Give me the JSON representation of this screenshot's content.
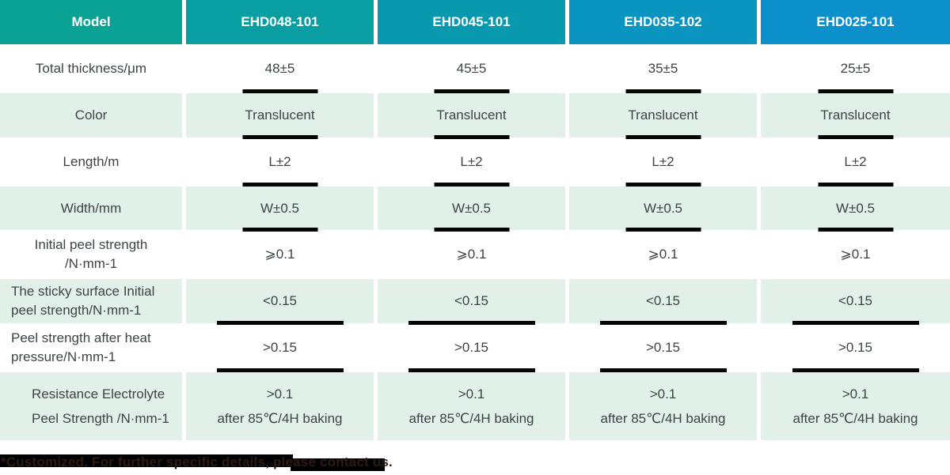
{
  "table": {
    "header": {
      "model_label": "Model",
      "columns": [
        "EHD048-101",
        "EHD045-101",
        "EHD035-102",
        "EHD025-101"
      ]
    },
    "rows": [
      {
        "label": "Total thickness/μm",
        "values": [
          "48±5",
          "45±5",
          "35±5",
          "25±5"
        ]
      },
      {
        "label": "Color",
        "values": [
          "Translucent",
          "Translucent",
          "Translucent",
          "Translucent"
        ]
      },
      {
        "label": "Length/m",
        "values": [
          "L±2",
          "L±2",
          "L±2",
          "L±2"
        ]
      },
      {
        "label": "Width/mm",
        "values": [
          "W±0.5",
          "W±0.5",
          "W±0.5",
          "W±0.5"
        ]
      },
      {
        "label": "Initial peel strength\n/N·mm-1",
        "values": [
          "⩾0.1",
          "⩾0.1",
          "⩾0.1",
          "⩾0.1"
        ]
      },
      {
        "label": "The sticky surface Initial\npeel strength/N·mm-1",
        "values": [
          "<0.15",
          "<0.15",
          "<0.15",
          "<0.15"
        ]
      },
      {
        "label": "Peel strength after heat\npressure/N·mm-1",
        "values": [
          ">0.15",
          ">0.15",
          ">0.15",
          ">0.15"
        ]
      },
      {
        "label": "Resistance Electrolyte\nPeel Strength /N·mm-1",
        "values": [
          ">0.1\nafter 85℃/4H baking",
          ">0.1\nafter 85℃/4H baking",
          ">0.1\nafter 85℃/4H baking",
          ">0.1\nafter 85℃/4H baking"
        ]
      }
    ],
    "colors": {
      "header_model": "#0aa294",
      "header_col1": "#099ea1",
      "header_col2": "#0999af",
      "header_col3": "#0a94c0",
      "header_col4": "#0b90cb",
      "row_alt_green": "#e2f0ea",
      "body_text": "#3e4347",
      "underline_bar": "#050505"
    }
  },
  "footnote": {
    "text": "*Customized. For further specific details, please contact us."
  }
}
